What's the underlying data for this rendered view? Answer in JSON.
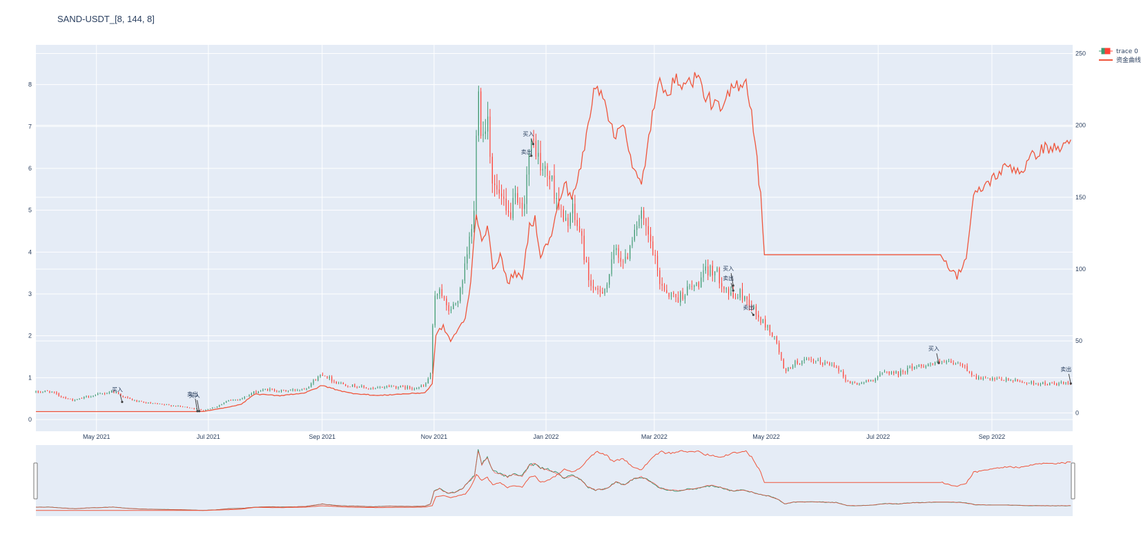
{
  "chart_data": {
    "type": "line",
    "title": "SAND-USDT_[8, 144, 8]",
    "x_range": [
      "2021-03-29",
      "2022-10-15"
    ],
    "y_left": {
      "range": [
        -0.28,
        8.95
      ],
      "ticks": [
        0,
        1,
        2,
        3,
        4,
        5,
        6,
        7,
        8
      ]
    },
    "y_right": {
      "range": [
        -12.8,
        256
      ],
      "ticks": [
        0,
        50,
        100,
        150,
        200,
        250
      ]
    },
    "x_ticks": [
      {
        "date": "2021-05-01",
        "label": "May 2021"
      },
      {
        "date": "2021-07-01",
        "label": "Jul 2021"
      },
      {
        "date": "2021-09-01",
        "label": "Sep 2021"
      },
      {
        "date": "2021-11-01",
        "label": "Nov 2021"
      },
      {
        "date": "2022-01-01",
        "label": "Jan 2022"
      },
      {
        "date": "2022-03-01",
        "label": "Mar 2022"
      },
      {
        "date": "2022-05-01",
        "label": "May 2022"
      },
      {
        "date": "2022-07-01",
        "label": "Jul 2022"
      },
      {
        "date": "2022-09-01",
        "label": "Sep 2022"
      }
    ],
    "legend": {
      "placement": "top-right",
      "entries": [
        "trace 0",
        "资金曲线"
      ]
    },
    "colors": {
      "increasing": "#3d9970",
      "decreasing": "#ff4136",
      "equity": "#ef553b",
      "plot_bg": "#e5ecf6"
    },
    "series": [
      {
        "name": "trace 0",
        "kind": "candlestick-close",
        "axis": "left",
        "points": [
          [
            "2021-03-29",
            0.65
          ],
          [
            "2021-04-05",
            0.68
          ],
          [
            "2021-04-12",
            0.55
          ],
          [
            "2021-04-19",
            0.45
          ],
          [
            "2021-04-26",
            0.55
          ],
          [
            "2021-05-03",
            0.6
          ],
          [
            "2021-05-10",
            0.68
          ],
          [
            "2021-05-17",
            0.52
          ],
          [
            "2021-05-24",
            0.42
          ],
          [
            "2021-05-31",
            0.38
          ],
          [
            "2021-06-07",
            0.35
          ],
          [
            "2021-06-14",
            0.32
          ],
          [
            "2021-06-21",
            0.28
          ],
          [
            "2021-06-28",
            0.22
          ],
          [
            "2021-07-05",
            0.3
          ],
          [
            "2021-07-12",
            0.45
          ],
          [
            "2021-07-19",
            0.5
          ],
          [
            "2021-07-26",
            0.65
          ],
          [
            "2021-08-02",
            0.72
          ],
          [
            "2021-08-09",
            0.68
          ],
          [
            "2021-08-16",
            0.7
          ],
          [
            "2021-08-23",
            0.75
          ],
          [
            "2021-09-01",
            1.1
          ],
          [
            "2021-09-08",
            0.9
          ],
          [
            "2021-09-15",
            0.82
          ],
          [
            "2021-09-22",
            0.78
          ],
          [
            "2021-09-29",
            0.72
          ],
          [
            "2021-10-06",
            0.8
          ],
          [
            "2021-10-13",
            0.78
          ],
          [
            "2021-10-20",
            0.75
          ],
          [
            "2021-10-27",
            0.8
          ],
          [
            "2021-10-30",
            1.1
          ],
          [
            "2021-11-01",
            2.8
          ],
          [
            "2021-11-04",
            3.2
          ],
          [
            "2021-11-08",
            2.6
          ],
          [
            "2021-11-12",
            2.7
          ],
          [
            "2021-11-16",
            3.1
          ],
          [
            "2021-11-20",
            4.2
          ],
          [
            "2021-11-23",
            5.0
          ],
          [
            "2021-11-25",
            8.4
          ],
          [
            "2021-11-27",
            6.6
          ],
          [
            "2021-11-30",
            7.4
          ],
          [
            "2021-12-03",
            5.6
          ],
          [
            "2021-12-07",
            5.3
          ],
          [
            "2021-12-11",
            4.8
          ],
          [
            "2021-12-15",
            5.2
          ],
          [
            "2021-12-19",
            4.9
          ],
          [
            "2021-12-23",
            6.4
          ],
          [
            "2021-12-26",
            6.6
          ],
          [
            "2021-12-29",
            6.0
          ],
          [
            "2022-01-03",
            5.8
          ],
          [
            "2022-01-07",
            5.3
          ],
          [
            "2022-01-11",
            4.6
          ],
          [
            "2022-01-15",
            5.0
          ],
          [
            "2022-01-20",
            4.4
          ],
          [
            "2022-01-24",
            3.4
          ],
          [
            "2022-01-28",
            3.0
          ],
          [
            "2022-02-03",
            3.2
          ],
          [
            "2022-02-08",
            4.1
          ],
          [
            "2022-02-13",
            3.7
          ],
          [
            "2022-02-18",
            4.6
          ],
          [
            "2022-02-22",
            4.8
          ],
          [
            "2022-02-27",
            4.2
          ],
          [
            "2022-03-04",
            3.3
          ],
          [
            "2022-03-09",
            3.0
          ],
          [
            "2022-03-14",
            2.9
          ],
          [
            "2022-03-19",
            3.1
          ],
          [
            "2022-03-24",
            3.2
          ],
          [
            "2022-03-29",
            3.5
          ],
          [
            "2022-04-02",
            3.6
          ],
          [
            "2022-04-07",
            3.3
          ],
          [
            "2022-04-12",
            2.9
          ],
          [
            "2022-04-17",
            3.0
          ],
          [
            "2022-04-22",
            2.8
          ],
          [
            "2022-04-27",
            2.4
          ],
          [
            "2022-05-02",
            2.2
          ],
          [
            "2022-05-07",
            1.8
          ],
          [
            "2022-05-11",
            1.1
          ],
          [
            "2022-05-16",
            1.35
          ],
          [
            "2022-05-24",
            1.4
          ],
          [
            "2022-06-01",
            1.35
          ],
          [
            "2022-06-08",
            1.3
          ],
          [
            "2022-06-14",
            0.9
          ],
          [
            "2022-06-20",
            0.85
          ],
          [
            "2022-06-28",
            0.95
          ],
          [
            "2022-07-05",
            1.15
          ],
          [
            "2022-07-12",
            1.1
          ],
          [
            "2022-07-19",
            1.25
          ],
          [
            "2022-07-26",
            1.3
          ],
          [
            "2022-08-02",
            1.35
          ],
          [
            "2022-08-09",
            1.35
          ],
          [
            "2022-08-16",
            1.3
          ],
          [
            "2022-08-23",
            1.0
          ],
          [
            "2022-09-01",
            0.95
          ],
          [
            "2022-09-10",
            0.95
          ],
          [
            "2022-09-20",
            0.88
          ],
          [
            "2022-10-01",
            0.85
          ],
          [
            "2022-10-14",
            0.86
          ]
        ]
      },
      {
        "name": "资金曲线",
        "kind": "line",
        "axis": "right",
        "points": [
          [
            "2021-03-29",
            0.9
          ],
          [
            "2021-06-27",
            0.9
          ],
          [
            "2021-06-29",
            1.1
          ],
          [
            "2021-07-12",
            4
          ],
          [
            "2021-07-19",
            6
          ],
          [
            "2021-07-26",
            13
          ],
          [
            "2021-08-09",
            12
          ],
          [
            "2021-08-23",
            14
          ],
          [
            "2021-09-01",
            19
          ],
          [
            "2021-09-15",
            14
          ],
          [
            "2021-10-01",
            12
          ],
          [
            "2021-10-13",
            13
          ],
          [
            "2021-10-27",
            14
          ],
          [
            "2021-10-31",
            20
          ],
          [
            "2021-11-02",
            55
          ],
          [
            "2021-11-06",
            60
          ],
          [
            "2021-11-10",
            50
          ],
          [
            "2021-11-14",
            58
          ],
          [
            "2021-11-18",
            65
          ],
          [
            "2021-11-21",
            92
          ],
          [
            "2021-11-24",
            140
          ],
          [
            "2021-11-27",
            120
          ],
          [
            "2021-11-30",
            130
          ],
          [
            "2021-12-03",
            100
          ],
          [
            "2021-12-07",
            110
          ],
          [
            "2021-12-11",
            90
          ],
          [
            "2021-12-15",
            98
          ],
          [
            "2021-12-19",
            92
          ],
          [
            "2021-12-23",
            130
          ],
          [
            "2021-12-26",
            135
          ],
          [
            "2021-12-29",
            110
          ],
          [
            "2022-01-03",
            120
          ],
          [
            "2022-01-07",
            140
          ],
          [
            "2022-01-11",
            160
          ],
          [
            "2022-01-15",
            150
          ],
          [
            "2022-01-20",
            170
          ],
          [
            "2022-01-24",
            200
          ],
          [
            "2022-01-28",
            230
          ],
          [
            "2022-02-02",
            220
          ],
          [
            "2022-02-07",
            190
          ],
          [
            "2022-02-12",
            205
          ],
          [
            "2022-02-17",
            170
          ],
          [
            "2022-02-22",
            158
          ],
          [
            "2022-02-27",
            200
          ],
          [
            "2022-03-04",
            230
          ],
          [
            "2022-03-09",
            225
          ],
          [
            "2022-03-14",
            232
          ],
          [
            "2022-03-19",
            228
          ],
          [
            "2022-03-24",
            235
          ],
          [
            "2022-03-29",
            220
          ],
          [
            "2022-04-02",
            215
          ],
          [
            "2022-04-07",
            210
          ],
          [
            "2022-04-12",
            225
          ],
          [
            "2022-04-17",
            230
          ],
          [
            "2022-04-20",
            232
          ],
          [
            "2022-04-24",
            200
          ],
          [
            "2022-04-28",
            150
          ],
          [
            "2022-04-30",
            110
          ],
          [
            "2022-08-05",
            110
          ],
          [
            "2022-08-09",
            100
          ],
          [
            "2022-08-13",
            95
          ],
          [
            "2022-08-18",
            108
          ],
          [
            "2022-08-22",
            150
          ],
          [
            "2022-08-28",
            158
          ],
          [
            "2022-09-03",
            165
          ],
          [
            "2022-09-10",
            172
          ],
          [
            "2022-09-17",
            168
          ],
          [
            "2022-09-24",
            180
          ],
          [
            "2022-10-01",
            185
          ],
          [
            "2022-10-07",
            183
          ],
          [
            "2022-10-14",
            190
          ]
        ]
      }
    ],
    "annotations": [
      {
        "text": "买入",
        "date": "2021-05-15",
        "value": 0.42,
        "ay": -15
      },
      {
        "text": "卖出",
        "date": "2021-06-25",
        "value": 0.2,
        "ay": -22
      },
      {
        "text": "买入",
        "date": "2021-06-26",
        "value": 0.2,
        "ay": -20
      },
      {
        "text": "买入",
        "date": "2021-12-25",
        "value": 6.58,
        "ay": -12
      },
      {
        "text": "卖出",
        "date": "2021-12-24",
        "value": 6.3,
        "ay": -3
      },
      {
        "text": "买入",
        "date": "2022-04-13",
        "value": 3.2,
        "ay": -22
      },
      {
        "text": "卖出",
        "date": "2022-04-13",
        "value": 3.08,
        "ay": -15
      },
      {
        "text": "卖出",
        "date": "2022-04-24",
        "value": 2.5,
        "ay": -8
      },
      {
        "text": "买入",
        "date": "2022-08-03",
        "value": 1.35,
        "ay": -18
      },
      {
        "text": "卖出",
        "date": "2022-10-14",
        "value": 0.86,
        "ay": -18
      }
    ]
  }
}
